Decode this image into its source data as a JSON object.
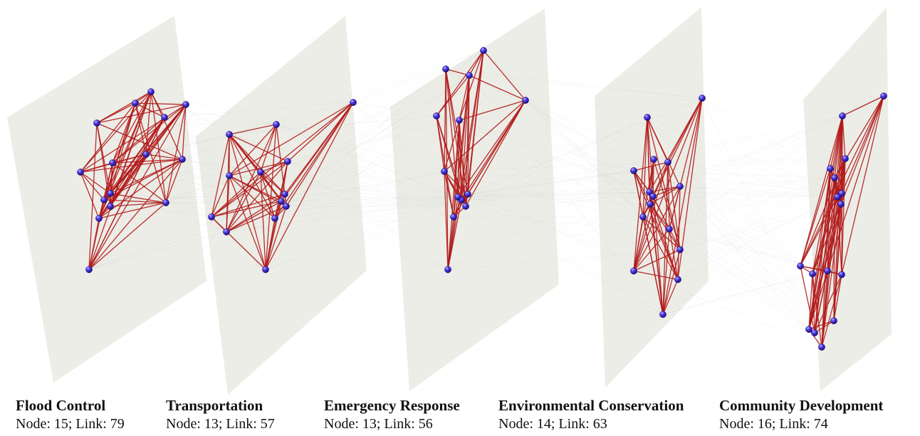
{
  "layers": [
    {
      "title": "Flood Control",
      "stats": "Node: 15; Link: 79",
      "nodes": 15,
      "links": 79
    },
    {
      "title": "Transportation",
      "stats": "Node: 13; Link: 57",
      "nodes": 13,
      "links": 57
    },
    {
      "title": "Emergency Response",
      "stats": "Node: 13; Link: 56",
      "nodes": 13,
      "links": 56
    },
    {
      "title": "Environmental Conservation",
      "stats": "Node: 14; Link: 63",
      "nodes": 14,
      "links": 63
    },
    {
      "title": "Community Development",
      "stats": "Node: 16; Link: 74",
      "nodes": 16,
      "links": 74
    }
  ],
  "colors": {
    "plane": "#ebebe4",
    "intra_link": "#b01818",
    "inter_link": "#9fb5a8",
    "node": "#3a2bd0"
  }
}
